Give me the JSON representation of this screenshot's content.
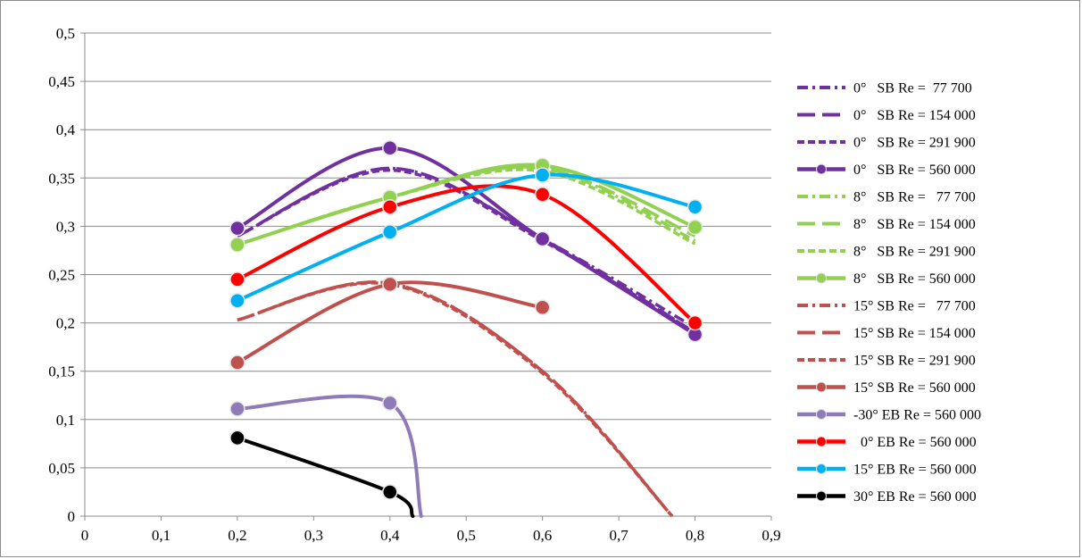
{
  "chart_data": {
    "type": "line",
    "title": "",
    "xlabel": "",
    "ylabel": "",
    "xlim": [
      0,
      0.9
    ],
    "ylim": [
      0,
      0.5
    ],
    "x_ticks": [
      "0",
      "0,1",
      "0,2",
      "0,3",
      "0,4",
      "0,5",
      "0,6",
      "0,7",
      "0,8",
      "0,9"
    ],
    "y_ticks": [
      "0",
      "0,05",
      "0,1",
      "0,15",
      "0,2",
      "0,25",
      "0,3",
      "0,35",
      "0,4",
      "0,45",
      "0,5"
    ],
    "grid": "horizontal",
    "legend_position": "right",
    "series": [
      {
        "name": "0°   SB Re =  77 700",
        "color": "#7030a0",
        "dash": "dashdot",
        "markers": false,
        "x": [
          0.2,
          0.4,
          0.6,
          0.8
        ],
        "y": [
          0.29,
          0.36,
          0.287,
          0.195
        ]
      },
      {
        "name": "0°   SB Re = 154 000",
        "color": "#7030a0",
        "dash": "longdash",
        "markers": false,
        "x": [
          0.2,
          0.4,
          0.6,
          0.8
        ],
        "y": [
          0.29,
          0.36,
          0.287,
          0.19
        ]
      },
      {
        "name": "0°   SB Re = 291 900",
        "color": "#7030a0",
        "dash": "shortdash",
        "markers": false,
        "x": [
          0.2,
          0.4,
          0.6,
          0.8
        ],
        "y": [
          0.29,
          0.358,
          0.285,
          0.19
        ]
      },
      {
        "name": "0°   SB Re = 560 000",
        "color": "#7030a0",
        "dash": "solid",
        "markers": true,
        "x": [
          0.2,
          0.4,
          0.6,
          0.8
        ],
        "y": [
          0.298,
          0.381,
          0.287,
          0.188
        ]
      },
      {
        "name": "8°   SB Re =   77 700",
        "color": "#92d050",
        "dash": "dashdot",
        "markers": false,
        "x": [
          0.2,
          0.4,
          0.6,
          0.8
        ],
        "y": [
          0.281,
          0.33,
          0.36,
          0.285
        ]
      },
      {
        "name": "8°   SB Re = 154 000",
        "color": "#92d050",
        "dash": "longdash",
        "markers": false,
        "x": [
          0.2,
          0.4,
          0.6,
          0.8
        ],
        "y": [
          0.281,
          0.33,
          0.36,
          0.29
        ]
      },
      {
        "name": "8°   SB Re = 291 900",
        "color": "#92d050",
        "dash": "shortdash",
        "markers": false,
        "x": [
          0.2,
          0.4,
          0.6,
          0.8
        ],
        "y": [
          0.281,
          0.33,
          0.357,
          0.282
        ]
      },
      {
        "name": "8°   SB Re = 560 000",
        "color": "#92d050",
        "dash": "solid",
        "markers": true,
        "x": [
          0.2,
          0.4,
          0.6,
          0.8
        ],
        "y": [
          0.281,
          0.33,
          0.363,
          0.299
        ]
      },
      {
        "name": "15° SB Re =   77 700",
        "color": "#c0504d",
        "dash": "dashdot",
        "markers": false,
        "x": [
          0.2,
          0.4,
          0.6,
          0.77
        ],
        "y": [
          0.203,
          0.241,
          0.15,
          0
        ]
      },
      {
        "name": "15° SB Re = 154 000",
        "color": "#c0504d",
        "dash": "longdash",
        "markers": false,
        "x": [
          0.2,
          0.4,
          0.6,
          0.77
        ],
        "y": [
          0.203,
          0.241,
          0.15,
          0
        ]
      },
      {
        "name": "15° SB Re = 291 900",
        "color": "#c0504d",
        "dash": "shortdash",
        "markers": false,
        "x": [
          0.2,
          0.4,
          0.6,
          0.77
        ],
        "y": [
          0.203,
          0.24,
          0.148,
          0
        ]
      },
      {
        "name": "15° SB Re = 560 000",
        "color": "#c0504d",
        "dash": "solid",
        "markers": true,
        "x": [
          0.2,
          0.4,
          0.6
        ],
        "y": [
          0.159,
          0.24,
          0.216
        ]
      },
      {
        "name": "-30° EB Re = 560 000",
        "color": "#8f7bb8",
        "dash": "solid",
        "markers": true,
        "x": [
          0.2,
          0.4
        ],
        "y": [
          0.111,
          0.117
        ],
        "tail": {
          "x": 0.441,
          "y": 0
        }
      },
      {
        "name": "  0° EB Re = 560 000",
        "color": "#ff0000",
        "dash": "solid",
        "markers": true,
        "x": [
          0.2,
          0.4,
          0.6,
          0.8
        ],
        "y": [
          0.245,
          0.32,
          0.333,
          0.2
        ]
      },
      {
        "name": "15° EB Re = 560 000",
        "color": "#00b0f0",
        "dash": "solid",
        "markers": true,
        "x": [
          0.2,
          0.4,
          0.6,
          0.8
        ],
        "y": [
          0.223,
          0.294,
          0.353,
          0.32
        ]
      },
      {
        "name": "30° EB Re = 560 000",
        "color": "#000000",
        "dash": "solid",
        "markers": true,
        "x": [
          0.2,
          0.4
        ],
        "y": [
          0.081,
          0.025
        ],
        "tail": {
          "x": 0.43,
          "y": 0
        }
      }
    ]
  }
}
